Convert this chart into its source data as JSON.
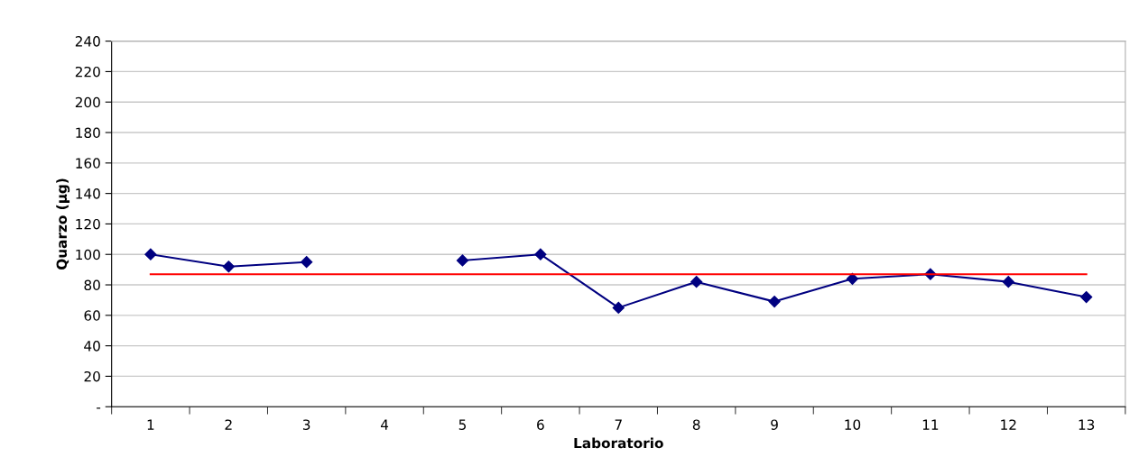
{
  "chart_data": {
    "type": "line",
    "xlabel": "Laboratorio",
    "ylabel": "Quarzo (µg)",
    "categories": [
      "1",
      "2",
      "3",
      "4",
      "5",
      "6",
      "7",
      "8",
      "9",
      "10",
      "11",
      "12",
      "13"
    ],
    "series": [
      {
        "color": "#000080",
        "marker": "diamond",
        "values": [
          100,
          92,
          95,
          null,
          96,
          100,
          65,
          82,
          69,
          84,
          87,
          82,
          72
        ]
      },
      {
        "color": "#ff0000",
        "marker": "none",
        "values": [
          87,
          87,
          87,
          87,
          87,
          87,
          87,
          87,
          87,
          87,
          87,
          87,
          87
        ]
      }
    ],
    "ylim": [
      0,
      240
    ],
    "yticks": [
      {
        "value": 0,
        "label": "-"
      },
      20,
      40,
      60,
      80,
      100,
      120,
      140,
      160,
      180,
      200,
      220,
      240
    ],
    "grid": "y",
    "legend": false
  }
}
